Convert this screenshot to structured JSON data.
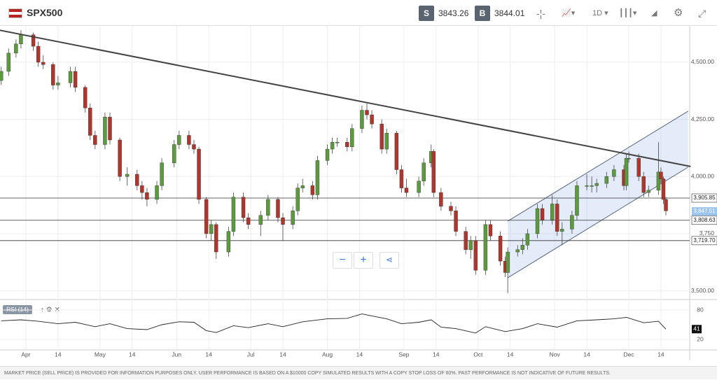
{
  "header": {
    "symbol": "SPX500",
    "sell_label": "S",
    "sell_price": "3843.26",
    "buy_label": "B",
    "buy_price": "3844.01",
    "period": "1D"
  },
  "footer": "MARKET PRICE (SELL PRICE) IS PROVIDED FOR INFORMATION PURPOSES ONLY. USER PERFORMANCE IS BASED ON A $10000 COPY SIMULATED RESULTS WITH A COPY STOP LOSS OF 60%. PAST PERFORMANCE IS NOT INDICATIVE OF FUTURE RESULTS.",
  "chart_data": {
    "type": "candlestick",
    "up_color": "#5c9a3e",
    "down_color": "#b0352c",
    "grid": true,
    "ylim": [
      3462,
      4659
    ],
    "yticks": [
      {
        "value": 3500,
        "label": "3,500.00"
      },
      {
        "value": 3750,
        "label": "3,750"
      },
      {
        "value": 4000,
        "label": "4,000.00"
      },
      {
        "value": 4250,
        "label": "4,250.00"
      },
      {
        "value": 4500,
        "label": "4,500.00"
      }
    ],
    "xticks": [
      {
        "value": "04-01",
        "label": "Apr"
      },
      {
        "value": "04-14",
        "label": "14"
      },
      {
        "value": "05-01",
        "label": "May"
      },
      {
        "value": "05-14",
        "label": "14"
      },
      {
        "value": "06-01",
        "label": "Jun"
      },
      {
        "value": "06-14",
        "label": "14"
      },
      {
        "value": "07-01",
        "label": "Jul"
      },
      {
        "value": "07-14",
        "label": "14"
      },
      {
        "value": "08-01",
        "label": "Aug"
      },
      {
        "value": "08-14",
        "label": "14"
      },
      {
        "value": "09-01",
        "label": "Sep"
      },
      {
        "value": "09-14",
        "label": "14"
      },
      {
        "value": "10-01",
        "label": "Oct"
      },
      {
        "value": "10-14",
        "label": "14"
      },
      {
        "value": "11-01",
        "label": "Nov"
      },
      {
        "value": "11-14",
        "label": "14"
      },
      {
        "value": "12-01",
        "label": "Dec"
      },
      {
        "value": "12-14",
        "label": "14"
      }
    ],
    "candles": [
      {
        "x": "03-22",
        "o": 4420,
        "h": 4480,
        "l": 4400,
        "c": 4460
      },
      {
        "x": "03-25",
        "o": 4460,
        "h": 4560,
        "l": 4440,
        "c": 4540
      },
      {
        "x": "03-28",
        "o": 4540,
        "h": 4600,
        "l": 4520,
        "c": 4580
      },
      {
        "x": "03-30",
        "o": 4580,
        "h": 4640,
        "l": 4560,
        "c": 4620
      },
      {
        "x": "04-04",
        "o": 4620,
        "h": 4630,
        "l": 4550,
        "c": 4570
      },
      {
        "x": "04-06",
        "o": 4570,
        "h": 4590,
        "l": 4480,
        "c": 4500
      },
      {
        "x": "04-08",
        "o": 4500,
        "h": 4530,
        "l": 4470,
        "c": 4490
      },
      {
        "x": "04-12",
        "o": 4490,
        "h": 4500,
        "l": 4380,
        "c": 4400
      },
      {
        "x": "04-14",
        "o": 4400,
        "h": 4440,
        "l": 4380,
        "c": 4410
      },
      {
        "x": "04-19",
        "o": 4410,
        "h": 4480,
        "l": 4390,
        "c": 4460
      },
      {
        "x": "04-21",
        "o": 4460,
        "h": 4480,
        "l": 4370,
        "c": 4390
      },
      {
        "x": "04-25",
        "o": 4390,
        "h": 4400,
        "l": 4280,
        "c": 4300
      },
      {
        "x": "04-27",
        "o": 4300,
        "h": 4320,
        "l": 4160,
        "c": 4180
      },
      {
        "x": "04-29",
        "o": 4180,
        "h": 4200,
        "l": 4120,
        "c": 4140
      },
      {
        "x": "05-03",
        "o": 4140,
        "h": 4280,
        "l": 4120,
        "c": 4260
      },
      {
        "x": "05-05",
        "o": 4260,
        "h": 4280,
        "l": 4140,
        "c": 4160
      },
      {
        "x": "05-09",
        "o": 4160,
        "h": 4170,
        "l": 3980,
        "c": 4000
      },
      {
        "x": "05-12",
        "o": 4000,
        "h": 4040,
        "l": 3960,
        "c": 4010
      },
      {
        "x": "05-16",
        "o": 4010,
        "h": 4030,
        "l": 3940,
        "c": 3960
      },
      {
        "x": "05-18",
        "o": 3960,
        "h": 3980,
        "l": 3900,
        "c": 3930
      },
      {
        "x": "05-20",
        "o": 3930,
        "h": 3950,
        "l": 3870,
        "c": 3900
      },
      {
        "x": "05-24",
        "o": 3900,
        "h": 3980,
        "l": 3880,
        "c": 3960
      },
      {
        "x": "05-26",
        "o": 3960,
        "h": 4080,
        "l": 3940,
        "c": 4060
      },
      {
        "x": "05-31",
        "o": 4060,
        "h": 4160,
        "l": 4040,
        "c": 4140
      },
      {
        "x": "06-02",
        "o": 4140,
        "h": 4200,
        "l": 4120,
        "c": 4180
      },
      {
        "x": "06-06",
        "o": 4180,
        "h": 4200,
        "l": 4120,
        "c": 4140
      },
      {
        "x": "06-08",
        "o": 4140,
        "h": 4160,
        "l": 4100,
        "c": 4120
      },
      {
        "x": "06-10",
        "o": 4120,
        "h": 4130,
        "l": 3880,
        "c": 3900
      },
      {
        "x": "06-13",
        "o": 3900,
        "h": 3910,
        "l": 3730,
        "c": 3750
      },
      {
        "x": "06-15",
        "o": 3750,
        "h": 3810,
        "l": 3720,
        "c": 3790
      },
      {
        "x": "06-17",
        "o": 3790,
        "h": 3800,
        "l": 3640,
        "c": 3670
      },
      {
        "x": "06-22",
        "o": 3670,
        "h": 3780,
        "l": 3650,
        "c": 3760
      },
      {
        "x": "06-24",
        "o": 3760,
        "h": 3930,
        "l": 3740,
        "c": 3910
      },
      {
        "x": "06-28",
        "o": 3910,
        "h": 3930,
        "l": 3800,
        "c": 3820
      },
      {
        "x": "06-30",
        "o": 3820,
        "h": 3840,
        "l": 3770,
        "c": 3790
      },
      {
        "x": "07-05",
        "o": 3790,
        "h": 3850,
        "l": 3740,
        "c": 3830
      },
      {
        "x": "07-08",
        "o": 3830,
        "h": 3920,
        "l": 3810,
        "c": 3900
      },
      {
        "x": "07-12",
        "o": 3900,
        "h": 3910,
        "l": 3800,
        "c": 3820
      },
      {
        "x": "07-14",
        "o": 3820,
        "h": 3840,
        "l": 3720,
        "c": 3790
      },
      {
        "x": "07-18",
        "o": 3790,
        "h": 3870,
        "l": 3770,
        "c": 3850
      },
      {
        "x": "07-20",
        "o": 3850,
        "h": 3970,
        "l": 3830,
        "c": 3950
      },
      {
        "x": "07-22",
        "o": 3950,
        "h": 3990,
        "l": 3930,
        "c": 3960
      },
      {
        "x": "07-26",
        "o": 3960,
        "h": 3980,
        "l": 3900,
        "c": 3920
      },
      {
        "x": "07-28",
        "o": 3920,
        "h": 4090,
        "l": 3900,
        "c": 4070
      },
      {
        "x": "08-01",
        "o": 4070,
        "h": 4140,
        "l": 4050,
        "c": 4120
      },
      {
        "x": "08-03",
        "o": 4120,
        "h": 4170,
        "l": 4100,
        "c": 4150
      },
      {
        "x": "08-05",
        "o": 4150,
        "h": 4170,
        "l": 4130,
        "c": 4150
      },
      {
        "x": "08-09",
        "o": 4150,
        "h": 4170,
        "l": 4110,
        "c": 4130
      },
      {
        "x": "08-11",
        "o": 4130,
        "h": 4230,
        "l": 4110,
        "c": 4210
      },
      {
        "x": "08-15",
        "o": 4210,
        "h": 4310,
        "l": 4190,
        "c": 4290
      },
      {
        "x": "08-17",
        "o": 4290,
        "h": 4320,
        "l": 4250,
        "c": 4270
      },
      {
        "x": "08-19",
        "o": 4270,
        "h": 4290,
        "l": 4210,
        "c": 4230
      },
      {
        "x": "08-23",
        "o": 4230,
        "h": 4250,
        "l": 4100,
        "c": 4120
      },
      {
        "x": "08-25",
        "o": 4120,
        "h": 4210,
        "l": 4100,
        "c": 4190
      },
      {
        "x": "08-29",
        "o": 4190,
        "h": 4200,
        "l": 4010,
        "c": 4030
      },
      {
        "x": "08-31",
        "o": 4030,
        "h": 4050,
        "l": 3930,
        "c": 3950
      },
      {
        "x": "09-02",
        "o": 3950,
        "h": 3990,
        "l": 3910,
        "c": 3930
      },
      {
        "x": "09-07",
        "o": 3930,
        "h": 4000,
        "l": 3910,
        "c": 3980
      },
      {
        "x": "09-09",
        "o": 3980,
        "h": 4080,
        "l": 3960,
        "c": 4060
      },
      {
        "x": "09-12",
        "o": 4060,
        "h": 4140,
        "l": 4040,
        "c": 4110
      },
      {
        "x": "09-13",
        "o": 4110,
        "h": 4120,
        "l": 3910,
        "c": 3930
      },
      {
        "x": "09-16",
        "o": 3930,
        "h": 3950,
        "l": 3850,
        "c": 3870
      },
      {
        "x": "09-20",
        "o": 3870,
        "h": 3890,
        "l": 3830,
        "c": 3850
      },
      {
        "x": "09-22",
        "o": 3850,
        "h": 3870,
        "l": 3740,
        "c": 3760
      },
      {
        "x": "09-26",
        "o": 3760,
        "h": 3780,
        "l": 3660,
        "c": 3680
      },
      {
        "x": "09-28",
        "o": 3680,
        "h": 3740,
        "l": 3640,
        "c": 3720
      },
      {
        "x": "09-30",
        "o": 3720,
        "h": 3740,
        "l": 3570,
        "c": 3590
      },
      {
        "x": "10-04",
        "o": 3590,
        "h": 3810,
        "l": 3570,
        "c": 3790
      },
      {
        "x": "10-06",
        "o": 3790,
        "h": 3810,
        "l": 3720,
        "c": 3740
      },
      {
        "x": "10-10",
        "o": 3740,
        "h": 3760,
        "l": 3610,
        "c": 3630
      },
      {
        "x": "10-12",
        "o": 3630,
        "h": 3650,
        "l": 3560,
        "c": 3580
      },
      {
        "x": "10-13",
        "o": 3580,
        "h": 3690,
        "l": 3490,
        "c": 3670
      },
      {
        "x": "10-17",
        "o": 3670,
        "h": 3700,
        "l": 3650,
        "c": 3680
      },
      {
        "x": "10-19",
        "o": 3680,
        "h": 3730,
        "l": 3660,
        "c": 3700
      },
      {
        "x": "10-21",
        "o": 3700,
        "h": 3770,
        "l": 3680,
        "c": 3750
      },
      {
        "x": "10-25",
        "o": 3750,
        "h": 3880,
        "l": 3730,
        "c": 3860
      },
      {
        "x": "10-27",
        "o": 3860,
        "h": 3880,
        "l": 3790,
        "c": 3810
      },
      {
        "x": "10-31",
        "o": 3810,
        "h": 3920,
        "l": 3790,
        "c": 3880
      },
      {
        "x": "11-02",
        "o": 3880,
        "h": 3900,
        "l": 3740,
        "c": 3760
      },
      {
        "x": "11-04",
        "o": 3760,
        "h": 3800,
        "l": 3700,
        "c": 3770
      },
      {
        "x": "11-08",
        "o": 3770,
        "h": 3850,
        "l": 3750,
        "c": 3830
      },
      {
        "x": "11-10",
        "o": 3830,
        "h": 3980,
        "l": 3810,
        "c": 3960
      },
      {
        "x": "11-14",
        "o": 3960,
        "h": 4010,
        "l": 3940,
        "c": 3960
      },
      {
        "x": "11-16",
        "o": 3960,
        "h": 4000,
        "l": 3930,
        "c": 3960
      },
      {
        "x": "11-18",
        "o": 3960,
        "h": 3990,
        "l": 3930,
        "c": 3970
      },
      {
        "x": "11-22",
        "o": 3970,
        "h": 4020,
        "l": 3950,
        "c": 4000
      },
      {
        "x": "11-25",
        "o": 4000,
        "h": 4050,
        "l": 3980,
        "c": 4030
      },
      {
        "x": "11-29",
        "o": 4030,
        "h": 4050,
        "l": 3940,
        "c": 3960
      },
      {
        "x": "11-30",
        "o": 3960,
        "h": 4100,
        "l": 3940,
        "c": 4080
      },
      {
        "x": "12-01",
        "o": 4080,
        "h": 4110,
        "l": 4060,
        "c": 4080
      },
      {
        "x": "12-05",
        "o": 4080,
        "h": 4100,
        "l": 3980,
        "c": 4000
      },
      {
        "x": "12-07",
        "o": 4000,
        "h": 4020,
        "l": 3910,
        "c": 3930
      },
      {
        "x": "12-09",
        "o": 3930,
        "h": 3960,
        "l": 3910,
        "c": 3940
      },
      {
        "x": "12-13",
        "o": 3940,
        "h": 4150,
        "l": 3920,
        "c": 4020
      },
      {
        "x": "12-14",
        "o": 4020,
        "h": 4040,
        "l": 3970,
        "c": 3990
      },
      {
        "x": "12-15",
        "o": 3990,
        "h": 4000,
        "l": 3880,
        "c": 3900
      },
      {
        "x": "12-16",
        "o": 3900,
        "h": 3910,
        "l": 3830,
        "c": 3850
      }
    ],
    "trendline": {
      "x": [
        "03-21",
        "12-26"
      ],
      "y": [
        4641,
        4044
      ]
    },
    "channel": {
      "x": [
        "10-13",
        "12-25"
      ],
      "upper": [
        3805,
        4286
      ],
      "lower": [
        3557,
        4041
      ]
    },
    "price_lines": [
      {
        "value": 3905.85,
        "label": "3,905.85"
      },
      {
        "value": 3808.63,
        "label": "3,808.63"
      },
      {
        "value": 3719.7,
        "label": "3,719.70"
      }
    ],
    "current_price": {
      "value": 3847.51,
      "label": "3,847.51"
    },
    "rsi": {
      "title": "RSI (14)",
      "ylim": [
        0,
        100
      ],
      "yticks": [
        80,
        20
      ],
      "x": [
        "03-22",
        "03-30",
        "04-06",
        "04-14",
        "04-21",
        "04-29",
        "05-05",
        "05-12",
        "05-20",
        "05-26",
        "06-02",
        "06-08",
        "06-13",
        "06-17",
        "06-24",
        "06-30",
        "07-08",
        "07-14",
        "07-22",
        "08-01",
        "08-09",
        "08-15",
        "08-19",
        "08-25",
        "08-31",
        "09-07",
        "09-12",
        "09-16",
        "09-22",
        "09-30",
        "10-04",
        "10-12",
        "10-19",
        "10-25",
        "11-02",
        "11-10",
        "11-18",
        "11-25",
        "11-30",
        "12-07",
        "12-13",
        "12-16"
      ],
      "values": [
        58,
        60,
        57,
        52,
        55,
        46,
        52,
        42,
        40,
        50,
        56,
        55,
        38,
        34,
        48,
        44,
        52,
        46,
        56,
        62,
        63,
        72,
        68,
        62,
        52,
        55,
        60,
        45,
        42,
        33,
        46,
        36,
        42,
        52,
        45,
        58,
        60,
        62,
        65,
        54,
        57,
        41
      ]
    }
  }
}
